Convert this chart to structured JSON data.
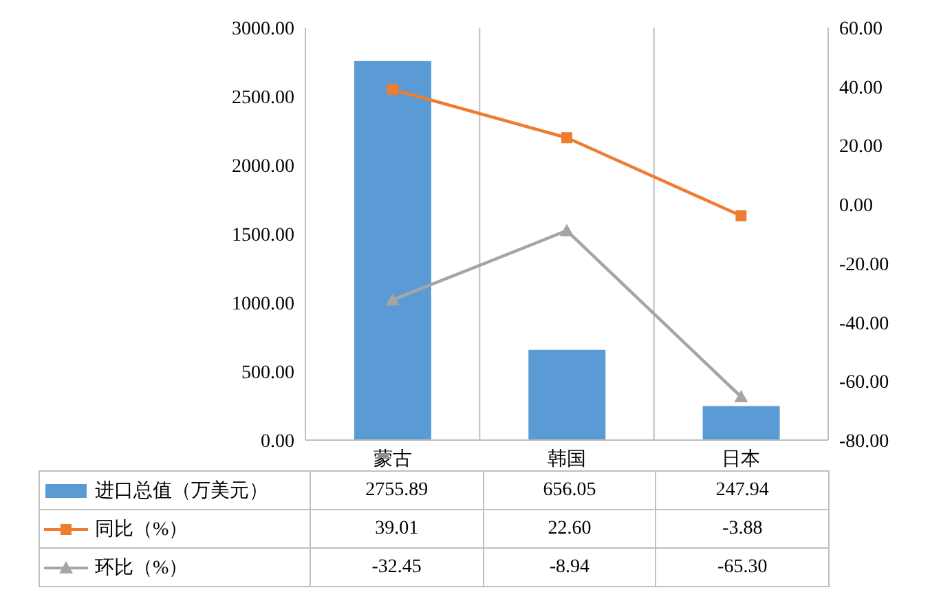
{
  "chart_data": {
    "type": "bar",
    "categories": [
      "蒙古",
      "韩国",
      "日本"
    ],
    "series": [
      {
        "name": "进口总值（万美元）",
        "color": "#5b9bd5",
        "values": [
          2755.89,
          656.05,
          247.94
        ]
      },
      {
        "name": "同比（%）",
        "type": "line",
        "axis": "y2",
        "color": "#ed7d31",
        "marker": "square",
        "values": [
          39.01,
          22.6,
          -3.88
        ]
      },
      {
        "name": "环比（%）",
        "type": "line",
        "axis": "y2",
        "color": "#a5a5a5",
        "marker": "triangle",
        "values": [
          -32.45,
          -8.94,
          -65.3
        ]
      }
    ],
    "ylim": [
      0,
      3000
    ],
    "yticks": [
      {
        "value": 0,
        "label": "0.00"
      },
      {
        "value": 500,
        "label": "500.00"
      },
      {
        "value": 1000,
        "label": "1000.00"
      },
      {
        "value": 1500,
        "label": "1500.00"
      },
      {
        "value": 2000,
        "label": "2000.00"
      },
      {
        "value": 2500,
        "label": "2500.00"
      },
      {
        "value": 3000,
        "label": "3000.00"
      }
    ],
    "y2lim": [
      -80,
      60
    ],
    "y2ticks": [
      {
        "value": -80,
        "label": "-80.00"
      },
      {
        "value": -60,
        "label": "-60.00"
      },
      {
        "value": -40,
        "label": "-40.00"
      },
      {
        "value": -20,
        "label": "-20.00"
      },
      {
        "value": 0,
        "label": "0.00"
      },
      {
        "value": 20,
        "label": "20.00"
      },
      {
        "value": 40,
        "label": "40.00"
      },
      {
        "value": 60,
        "label": "60.00"
      }
    ],
    "value_labels": [
      [
        "2755.89",
        "656.05",
        "247.94"
      ],
      [
        "39.01",
        "22.60",
        "-3.88"
      ],
      [
        "-32.45",
        "-8.94",
        "-65.30"
      ]
    ],
    "grid": "x",
    "legend": "bottom",
    "line_style": "solid"
  }
}
